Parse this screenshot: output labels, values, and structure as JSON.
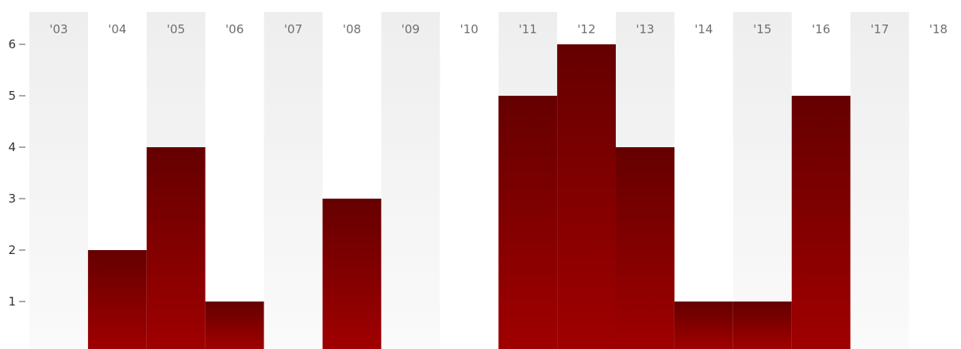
{
  "chart_data": {
    "type": "bar",
    "categories": [
      "'03",
      "'04",
      "'05",
      "'06",
      "'07",
      "'08",
      "'09",
      "'10",
      "'11",
      "'12",
      "'13",
      "'14",
      "'15",
      "'16",
      "'17",
      "'18"
    ],
    "values": [
      0,
      2,
      4,
      1,
      0,
      3,
      0,
      0,
      5,
      6,
      4,
      1,
      1,
      5,
      0,
      0
    ],
    "yticks": [
      1,
      2,
      3,
      4,
      5,
      6
    ],
    "ylim": [
      0,
      6
    ],
    "title": "",
    "xlabel": "",
    "ylabel": "",
    "grid": false,
    "colors": {
      "bar_top": "#650000",
      "bar_bottom": "#a00000",
      "band": "#eeeeee",
      "band_fade": "#fafafa"
    }
  }
}
